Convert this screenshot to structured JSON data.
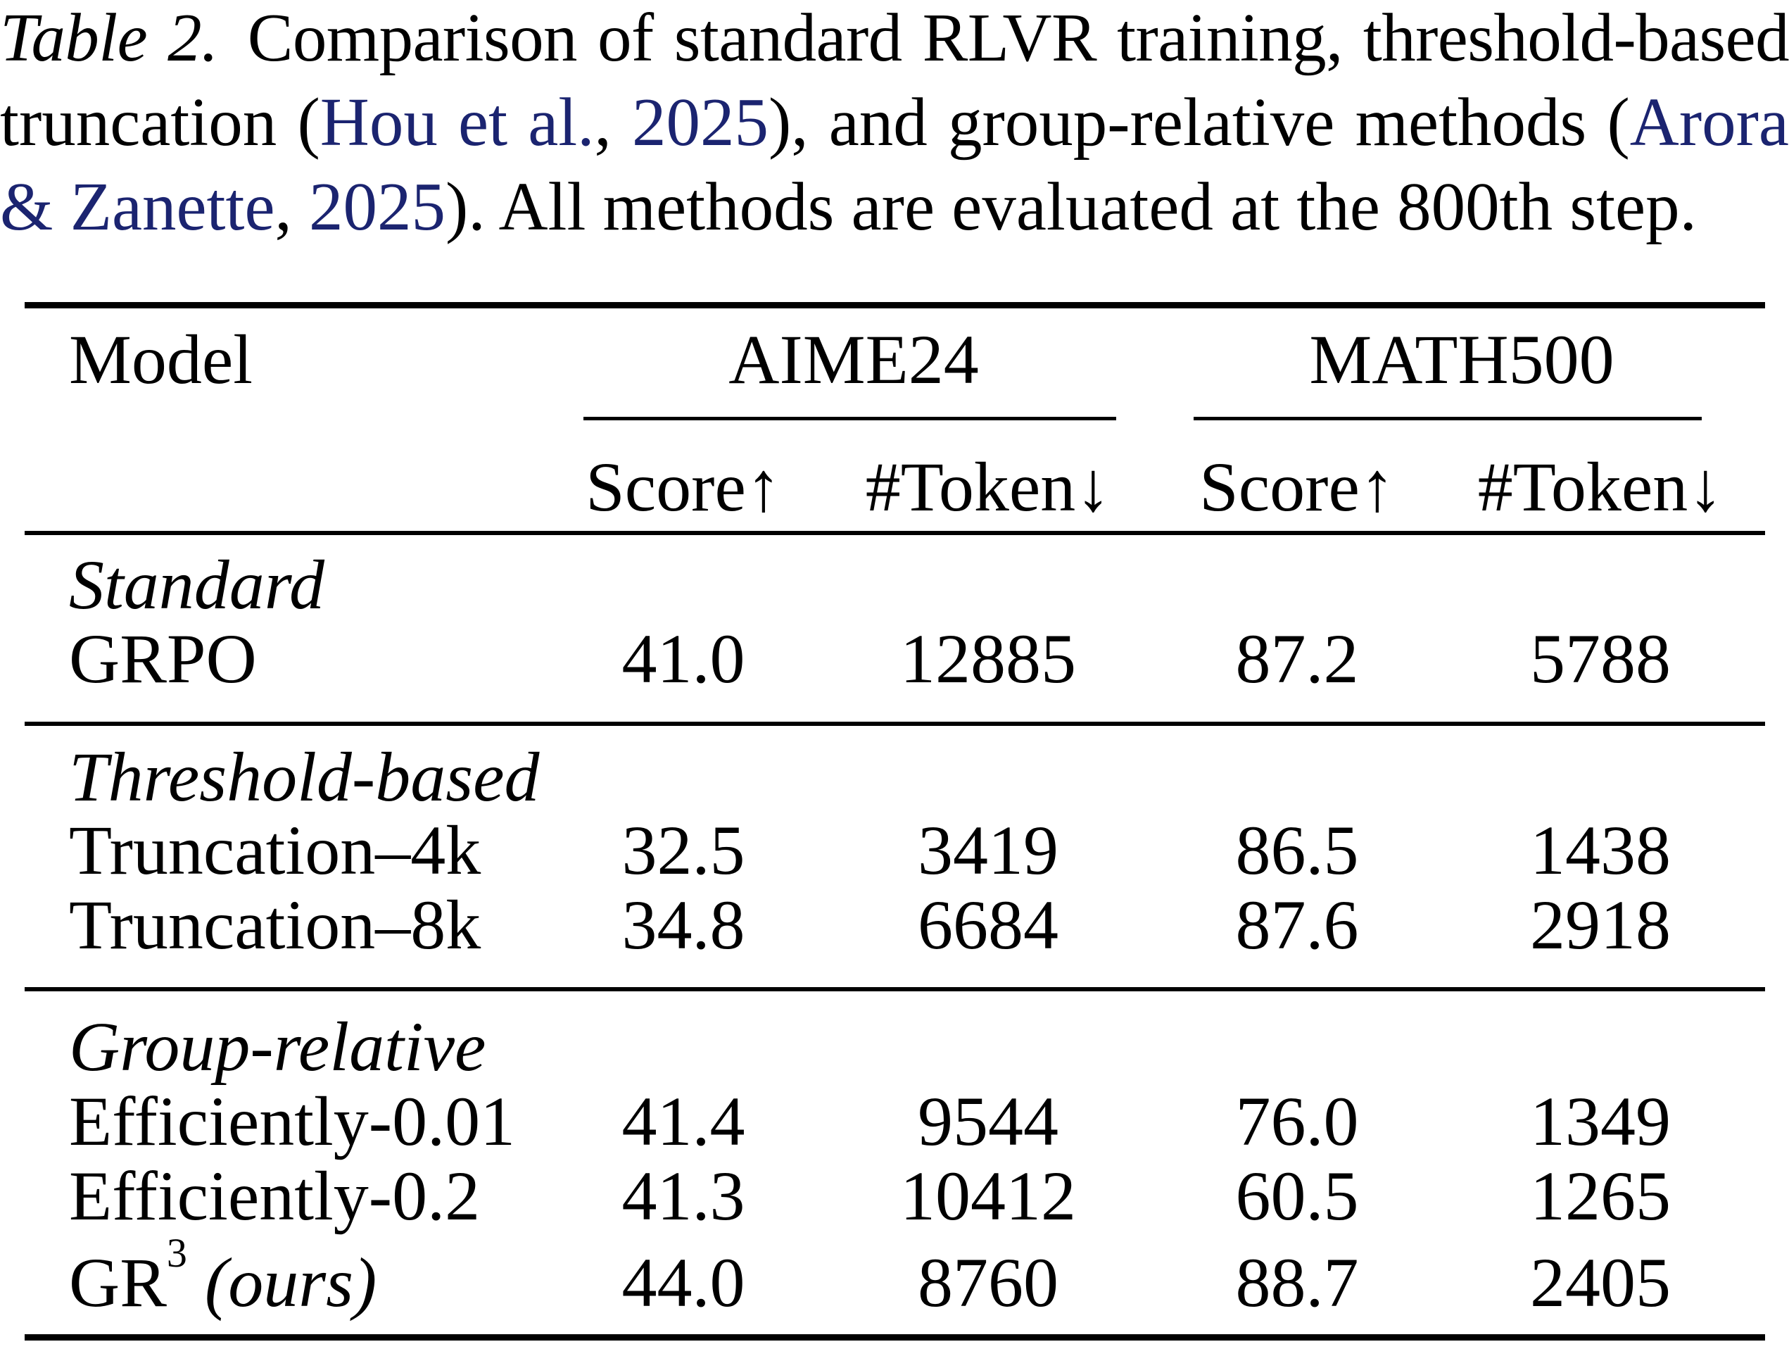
{
  "caption": {
    "label": "Table 2.",
    "lines": [
      {
        "segments": [
          {
            "text": "Comparison of standard RLVR training, threshold-based",
            "link": false
          }
        ]
      },
      {
        "segments": [
          {
            "text": "truncation (",
            "link": false
          },
          {
            "text": "Hou et al.",
            "link": true
          },
          {
            "text": ", ",
            "link": false
          },
          {
            "text": "2025",
            "link": true
          },
          {
            "text": "), and group-relative methods (",
            "link": false
          },
          {
            "text": "Arora",
            "link": true
          }
        ]
      },
      {
        "segments": [
          {
            "text": "& Zanette",
            "link": true
          },
          {
            "text": ", ",
            "link": false
          },
          {
            "text": "2025",
            "link": true
          },
          {
            "text": "). All methods are evaluated at the 800th step.",
            "link": false
          }
        ]
      }
    ]
  },
  "table": {
    "header": {
      "model": "Model",
      "groups": [
        {
          "label": "AIME24",
          "metrics": [
            "Score↑",
            "#Token↓"
          ]
        },
        {
          "label": "MATH500",
          "metrics": [
            "Score↑",
            "#Token↓"
          ]
        }
      ]
    },
    "sections": [
      {
        "label": "Standard",
        "rows": [
          {
            "model": "GRPO",
            "values": [
              "41.0",
              "12885",
              "87.2",
              "5788"
            ]
          }
        ]
      },
      {
        "label": "Threshold-based",
        "rows": [
          {
            "model": "Truncation–4k",
            "values": [
              "32.5",
              "3419",
              "86.5",
              "1438"
            ]
          },
          {
            "model": "Truncation–8k",
            "values": [
              "34.8",
              "6684",
              "87.6",
              "2918"
            ]
          }
        ]
      },
      {
        "label": "Group-relative",
        "rows": [
          {
            "model": "Efficiently-0.01",
            "values": [
              "41.4",
              "9544",
              "76.0",
              "1349"
            ]
          },
          {
            "model": "Efficiently-0.2",
            "values": [
              "41.3",
              "10412",
              "60.5",
              "1265"
            ]
          },
          {
            "model": "GR",
            "model_superscript": "3",
            "model_note": "(ours)",
            "values": [
              "44.0",
              "8760",
              "88.7",
              "2405"
            ]
          }
        ]
      }
    ]
  },
  "colors": {
    "text": "#000000",
    "citation_link": "#1b2470",
    "rule": "#000000",
    "background": "#ffffff"
  }
}
